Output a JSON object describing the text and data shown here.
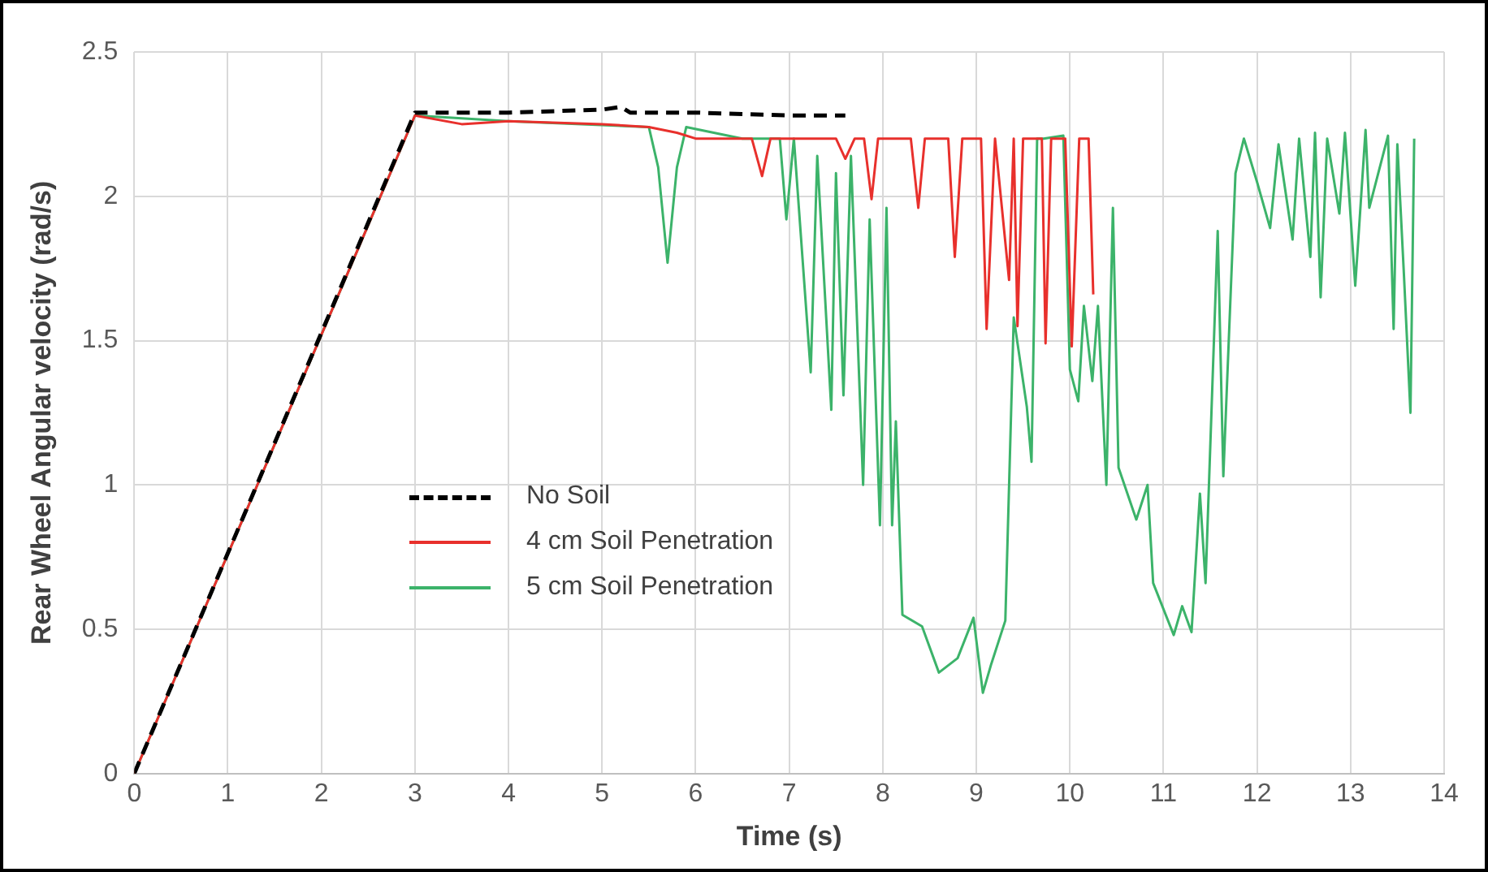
{
  "chart_data": {
    "type": "line",
    "xlabel": "Time (s)",
    "ylabel": "Rear Wheel Angular velocity (rad/s)",
    "xlim": [
      0,
      14
    ],
    "xticks": [
      0,
      1,
      2,
      3,
      4,
      5,
      6,
      7,
      8,
      9,
      10,
      11,
      12,
      13,
      14
    ],
    "ylim": [
      0,
      2.5
    ],
    "yticks": [
      0,
      0.5,
      1,
      1.5,
      2,
      2.5
    ],
    "grid": true,
    "legend": "left",
    "marker": "none",
    "series": [
      {
        "name": "No Soil",
        "color": "#000000",
        "line_style": "dashed",
        "x": [
          0,
          3,
          4,
          5,
          5.2,
          5.3,
          6,
          7,
          7.6
        ],
        "values": [
          0,
          2.29,
          2.29,
          2.3,
          2.31,
          2.29,
          2.29,
          2.28,
          2.28
        ]
      },
      {
        "name": "4 cm Soil Penetration",
        "color": "#e8302c",
        "line_style": "solid",
        "x": [
          0,
          3,
          3.5,
          4,
          5,
          5.5,
          5.8,
          6,
          6.6,
          6.71,
          6.8,
          7.5,
          7.6,
          7.7,
          7.8,
          7.88,
          7.95,
          8.3,
          8.38,
          8.45,
          8.7,
          8.77,
          8.85,
          9.05,
          9.11,
          9.2,
          9.35,
          9.4,
          9.44,
          9.5,
          9.7,
          9.74,
          9.8,
          9.95,
          10.02,
          10.1,
          10.2,
          10.25
        ],
        "values": [
          0,
          2.28,
          2.25,
          2.26,
          2.25,
          2.24,
          2.22,
          2.2,
          2.2,
          2.07,
          2.2,
          2.2,
          2.13,
          2.2,
          2.2,
          1.99,
          2.2,
          2.2,
          1.96,
          2.2,
          2.2,
          1.79,
          2.2,
          2.2,
          1.54,
          2.2,
          1.71,
          2.2,
          1.55,
          2.2,
          2.2,
          1.49,
          2.2,
          2.2,
          1.48,
          2.2,
          2.2,
          1.66
        ]
      },
      {
        "name": "5 cm Soil Penetration",
        "color": "#3cb36a",
        "line_style": "solid",
        "x": [
          0,
          3,
          3.5,
          4,
          5.5,
          5.6,
          5.7,
          5.8,
          5.9,
          6.5,
          6.9,
          6.97,
          7.05,
          7.23,
          7.3,
          7.45,
          7.5,
          7.58,
          7.66,
          7.79,
          7.86,
          7.97,
          8.04,
          8.1,
          8.14,
          8.21,
          8.42,
          8.6,
          8.8,
          8.97,
          9.07,
          9.16,
          9.31,
          9.4,
          9.54,
          9.59,
          9.65,
          9.72,
          9.93,
          10.0,
          10.09,
          10.15,
          10.24,
          10.3,
          10.39,
          10.46,
          10.52,
          10.71,
          10.83,
          10.89,
          11.11,
          11.2,
          11.3,
          11.39,
          11.45,
          11.58,
          11.64,
          11.77,
          11.86,
          12.0,
          12.14,
          12.23,
          12.38,
          12.45,
          12.57,
          12.62,
          12.68,
          12.75,
          12.88,
          12.94,
          13.05,
          13.16,
          13.2,
          13.4,
          13.46,
          13.5,
          13.57,
          13.64,
          13.68
        ],
        "values": [
          0,
          2.28,
          2.27,
          2.26,
          2.24,
          2.1,
          1.77,
          2.1,
          2.24,
          2.2,
          2.2,
          1.92,
          2.2,
          1.39,
          2.14,
          1.26,
          2.08,
          1.31,
          2.14,
          1.0,
          1.92,
          0.86,
          1.96,
          0.86,
          1.22,
          0.55,
          0.51,
          0.35,
          0.4,
          0.54,
          0.28,
          0.38,
          0.53,
          1.58,
          1.27,
          1.08,
          2.2,
          2.2,
          2.21,
          1.4,
          1.29,
          1.62,
          1.36,
          1.62,
          1.0,
          1.96,
          1.06,
          0.88,
          1.0,
          0.66,
          0.48,
          0.58,
          0.49,
          0.97,
          0.66,
          1.88,
          1.03,
          2.08,
          2.2,
          2.05,
          1.89,
          2.18,
          1.85,
          2.2,
          1.79,
          2.22,
          1.65,
          2.2,
          1.94,
          2.22,
          1.69,
          2.23,
          1.96,
          2.21,
          1.54,
          2.18,
          1.73,
          1.25,
          2.2
        ]
      }
    ]
  }
}
